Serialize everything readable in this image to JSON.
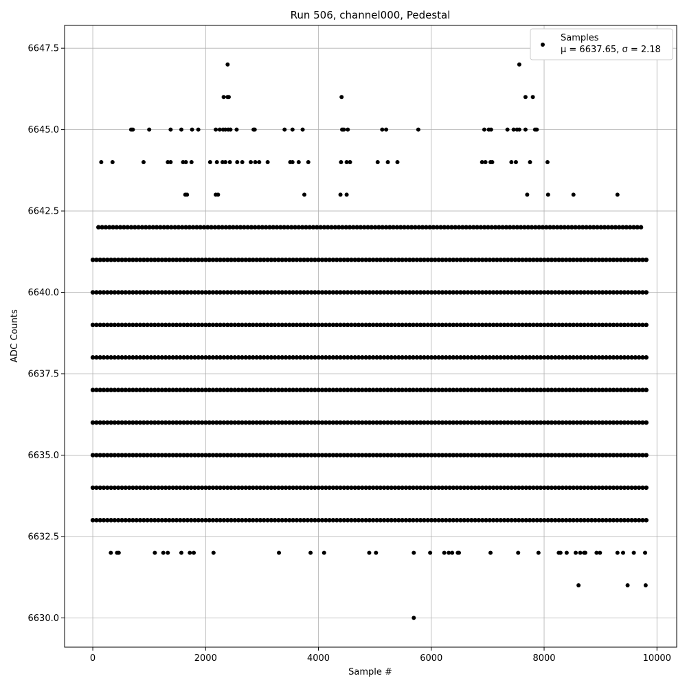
{
  "chart_data": {
    "type": "scatter",
    "title": "Run 506, channel000, Pedestal",
    "xlabel": "Sample #",
    "ylabel": "ADC Counts",
    "xlim": [
      -500,
      10350
    ],
    "ylim": [
      6629.1,
      6648.2
    ],
    "xticks": [
      0,
      2000,
      4000,
      6000,
      8000,
      10000
    ],
    "xtick_labels": [
      "0",
      "2000",
      "4000",
      "6000",
      "8000",
      "10000"
    ],
    "yticks": [
      6630.0,
      6632.5,
      6635.0,
      6637.5,
      6640.0,
      6642.5,
      6645.0,
      6647.5
    ],
    "ytick_labels": [
      "6630.0",
      "6632.5",
      "6635.0",
      "6637.5",
      "6640.0",
      "6642.5",
      "6645.0",
      "6647.5"
    ],
    "grid": true,
    "legend": {
      "placement": "top-right",
      "entries": [
        "Samples",
        "μ = 6637.65, σ = 2.18"
      ]
    },
    "series": [
      {
        "name": "Samples",
        "color": "#000000",
        "levels": [
          {
            "y": 6636,
            "ranges": [
              [
                0,
                9840
              ]
            ]
          },
          {
            "y": 6637,
            "ranges": [
              [
                0,
                9840
              ]
            ]
          },
          {
            "y": 6638,
            "ranges": [
              [
                0,
                9840
              ]
            ]
          },
          {
            "y": 6639,
            "ranges": [
              [
                0,
                9840
              ]
            ]
          },
          {
            "y": 6640,
            "ranges": [
              [
                0,
                9840
              ]
            ]
          },
          {
            "y": 6641,
            "ranges": [
              [
                0,
                9830
              ]
            ]
          },
          {
            "y": 6635,
            "ranges": [
              [
                0,
                9840
              ]
            ]
          },
          {
            "y": 6634,
            "ranges": [
              [
                0,
                9820
              ]
            ]
          },
          {
            "y": 6633,
            "ranges": [
              [
                0,
                9830
              ]
            ]
          },
          {
            "y": 6642,
            "ranges": [
              [
                100,
                9720
              ]
            ]
          }
        ],
        "points": [
          [
            150,
            6644
          ],
          [
            350,
            6644
          ],
          [
            680,
            6645
          ],
          [
            710,
            6645
          ],
          [
            900,
            6644
          ],
          [
            1000,
            6645
          ],
          [
            1330,
            6644
          ],
          [
            1380,
            6644
          ],
          [
            1380,
            6645
          ],
          [
            1570,
            6645
          ],
          [
            1600,
            6644
          ],
          [
            1650,
            6644
          ],
          [
            1760,
            6645
          ],
          [
            1750,
            6644
          ],
          [
            1870,
            6645
          ],
          [
            1640,
            6643
          ],
          [
            1670,
            6643
          ],
          [
            2180,
            6643
          ],
          [
            2220,
            6643
          ],
          [
            2080,
            6644
          ],
          [
            2200,
            6644
          ],
          [
            2300,
            6644
          ],
          [
            2350,
            6644
          ],
          [
            2430,
            6644
          ],
          [
            2560,
            6644
          ],
          [
            2650,
            6644
          ],
          [
            2800,
            6644
          ],
          [
            2880,
            6644
          ],
          [
            2950,
            6644
          ],
          [
            3100,
            6644
          ],
          [
            3500,
            6644
          ],
          [
            3540,
            6644
          ],
          [
            3650,
            6644
          ],
          [
            3820,
            6644
          ],
          [
            4400,
            6644
          ],
          [
            4500,
            6644
          ],
          [
            4560,
            6644
          ],
          [
            5050,
            6644
          ],
          [
            5230,
            6644
          ],
          [
            5400,
            6644
          ],
          [
            6900,
            6644
          ],
          [
            6960,
            6644
          ],
          [
            7050,
            6644
          ],
          [
            7080,
            6644
          ],
          [
            7420,
            6644
          ],
          [
            7500,
            6644
          ],
          [
            7750,
            6644
          ],
          [
            8060,
            6644
          ],
          [
            2180,
            6645
          ],
          [
            2250,
            6645
          ],
          [
            2310,
            6645
          ],
          [
            2350,
            6645
          ],
          [
            2400,
            6645
          ],
          [
            2440,
            6645
          ],
          [
            2550,
            6645
          ],
          [
            2850,
            6645
          ],
          [
            2870,
            6645
          ],
          [
            3400,
            6645
          ],
          [
            3540,
            6645
          ],
          [
            3720,
            6645
          ],
          [
            4420,
            6645
          ],
          [
            4450,
            6645
          ],
          [
            4520,
            6645
          ],
          [
            5130,
            6645
          ],
          [
            5200,
            6645
          ],
          [
            5770,
            6645
          ],
          [
            6940,
            6645
          ],
          [
            7020,
            6645
          ],
          [
            7060,
            6645
          ],
          [
            7350,
            6645
          ],
          [
            7460,
            6645
          ],
          [
            7520,
            6645
          ],
          [
            7560,
            6645
          ],
          [
            7670,
            6645
          ],
          [
            7840,
            6645
          ],
          [
            7870,
            6645
          ],
          [
            2320,
            6646
          ],
          [
            2390,
            6646
          ],
          [
            2410,
            6646
          ],
          [
            4410,
            6646
          ],
          [
            7670,
            6646
          ],
          [
            7800,
            6646
          ],
          [
            2390,
            6647
          ],
          [
            7560,
            6647
          ],
          [
            3750,
            6643
          ],
          [
            4390,
            6643
          ],
          [
            4500,
            6643
          ],
          [
            7700,
            6643
          ],
          [
            8070,
            6643
          ],
          [
            8520,
            6643
          ],
          [
            9300,
            6643
          ],
          [
            320,
            6632
          ],
          [
            430,
            6632
          ],
          [
            460,
            6632
          ],
          [
            1100,
            6632
          ],
          [
            1250,
            6632
          ],
          [
            1330,
            6632
          ],
          [
            1570,
            6632
          ],
          [
            1720,
            6632
          ],
          [
            1790,
            6632
          ],
          [
            2140,
            6632
          ],
          [
            3300,
            6632
          ],
          [
            3860,
            6632
          ],
          [
            4100,
            6632
          ],
          [
            4900,
            6632
          ],
          [
            5020,
            6632
          ],
          [
            5690,
            6632
          ],
          [
            5980,
            6632
          ],
          [
            6230,
            6632
          ],
          [
            6310,
            6632
          ],
          [
            6370,
            6632
          ],
          [
            6470,
            6632
          ],
          [
            6490,
            6632
          ],
          [
            7050,
            6632
          ],
          [
            7540,
            6632
          ],
          [
            7900,
            6632
          ],
          [
            8260,
            6632
          ],
          [
            8290,
            6632
          ],
          [
            8400,
            6632
          ],
          [
            8560,
            6632
          ],
          [
            8640,
            6632
          ],
          [
            8710,
            6632
          ],
          [
            8730,
            6632
          ],
          [
            8930,
            6632
          ],
          [
            8990,
            6632
          ],
          [
            9300,
            6632
          ],
          [
            9400,
            6632
          ],
          [
            9590,
            6632
          ],
          [
            9790,
            6632
          ],
          [
            8610,
            6631
          ],
          [
            9480,
            6631
          ],
          [
            9800,
            6631
          ],
          [
            5690,
            6630
          ]
        ]
      }
    ]
  }
}
